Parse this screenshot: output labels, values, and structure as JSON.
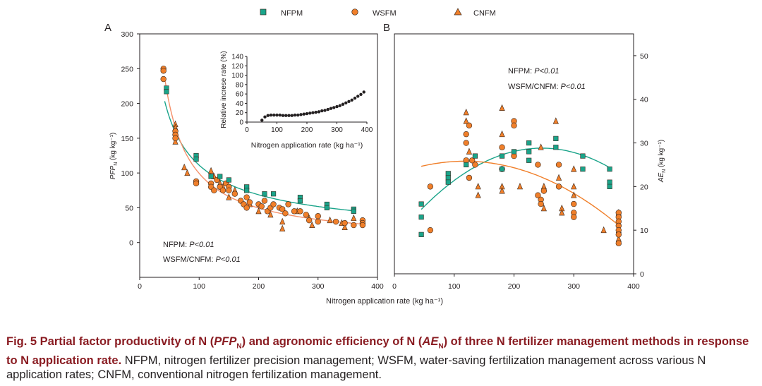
{
  "legend": {
    "nfpm": "NFPM",
    "wsfm": "WSFM",
    "cnfm": "CNFM"
  },
  "colors": {
    "nfpm": "#1aa48a",
    "wsfm": "#f07f2a",
    "cnfm": "#f07f2a",
    "marker_edge": "#3a2a20",
    "caption_bold": "#8a1c22"
  },
  "panel_a": {
    "label": "A",
    "stat_nfpm_prefix": "NFPM: ",
    "stat_nfpm_p": "P<0.01",
    "stat_wsfm_prefix": "WSFM/CNFM: ",
    "stat_wsfm_p": "P<0.01"
  },
  "panel_b": {
    "label": "B",
    "stat_nfpm_prefix": "NFPM: ",
    "stat_nfpm_p": "P<0.01",
    "stat_wsfm_prefix": "WSFM/CNFM: ",
    "stat_wsfm_p": "P<0.01"
  },
  "shared_xlabel": "Nitrogen application rate (kg ha⁻¹)",
  "chart_data": [
    {
      "id": "A",
      "type": "scatter",
      "title": "",
      "xlabel": "Nitrogen application rate (kg ha⁻¹)",
      "ylabel_main": "PFP",
      "ylabel_sub": "N",
      "ylabel_unit": " (kg kg⁻¹)",
      "xlim": [
        0,
        400
      ],
      "ylim": [
        -50,
        300
      ],
      "xticks": [
        0,
        100,
        200,
        300,
        400
      ],
      "yticks": [
        0,
        50,
        100,
        150,
        200,
        250,
        300
      ],
      "series": [
        {
          "name": "NFPM",
          "marker": "square",
          "points": [
            [
              45,
              222
            ],
            [
              45,
              217
            ],
            [
              95,
              125
            ],
            [
              95,
              120
            ],
            [
              120,
              95
            ],
            [
              135,
              95
            ],
            [
              150,
              90
            ],
            [
              180,
              80
            ],
            [
              180,
              75
            ],
            [
              210,
              70
            ],
            [
              225,
              70
            ],
            [
              270,
              65
            ],
            [
              270,
              60
            ],
            [
              315,
              55
            ],
            [
              315,
              50
            ],
            [
              360,
              48
            ],
            [
              360,
              45
            ]
          ]
        },
        {
          "name": "WSFM",
          "marker": "circle",
          "points": [
            [
              40,
              250
            ],
            [
              40,
              247
            ],
            [
              40,
              235
            ],
            [
              60,
              160
            ],
            [
              60,
              155
            ],
            [
              60,
              150
            ],
            [
              95,
              88
            ],
            [
              95,
              85
            ],
            [
              120,
              85
            ],
            [
              120,
              80
            ],
            [
              125,
              75
            ],
            [
              130,
              90
            ],
            [
              135,
              80
            ],
            [
              140,
              75
            ],
            [
              145,
              85
            ],
            [
              150,
              80
            ],
            [
              150,
              75
            ],
            [
              160,
              70
            ],
            [
              170,
              60
            ],
            [
              175,
              55
            ],
            [
              180,
              65
            ],
            [
              180,
              50
            ],
            [
              185,
              58
            ],
            [
              200,
              55
            ],
            [
              205,
              52
            ],
            [
              210,
              60
            ],
            [
              215,
              45
            ],
            [
              220,
              50
            ],
            [
              225,
              55
            ],
            [
              235,
              50
            ],
            [
              240,
              48
            ],
            [
              245,
              42
            ],
            [
              250,
              55
            ],
            [
              260,
              45
            ],
            [
              270,
              45
            ],
            [
              280,
              40
            ],
            [
              285,
              32
            ],
            [
              300,
              38
            ],
            [
              300,
              30
            ],
            [
              330,
              30
            ],
            [
              345,
              28
            ],
            [
              360,
              25
            ],
            [
              375,
              32
            ],
            [
              375,
              28
            ],
            [
              375,
              25
            ]
          ]
        },
        {
          "name": "CNFM",
          "marker": "triangle",
          "points": [
            [
              60,
              170
            ],
            [
              60,
              165
            ],
            [
              60,
              145
            ],
            [
              75,
              108
            ],
            [
              80,
              100
            ],
            [
              120,
              103
            ],
            [
              125,
              95
            ],
            [
              135,
              85
            ],
            [
              140,
              80
            ],
            [
              150,
              65
            ],
            [
              160,
              75
            ],
            [
              185,
              55
            ],
            [
              200,
              45
            ],
            [
              220,
              40
            ],
            [
              240,
              30
            ],
            [
              240,
              20
            ],
            [
              265,
              45
            ],
            [
              285,
              35
            ],
            [
              290,
              25
            ],
            [
              320,
              32
            ],
            [
              340,
              28
            ],
            [
              345,
              22
            ],
            [
              360,
              35
            ],
            [
              375,
              30
            ]
          ]
        }
      ],
      "curves": [
        {
          "name": "NFPM fit",
          "model": "a*x^b",
          "a": 2730,
          "b": -0.695
        },
        {
          "name": "WSFM/CNFM fit",
          "model": "a*x^b",
          "a": 9940,
          "b": -1.0
        }
      ],
      "inset": {
        "type": "scatter",
        "xlabel": "Nitrogen application rate (kg ha⁻¹)",
        "ylabel": "Relative increse rate (%)",
        "xlim": [
          0,
          400
        ],
        "ylim": [
          0,
          140
        ],
        "xticks": [
          0,
          100,
          200,
          300,
          400
        ],
        "yticks": [
          0,
          20,
          40,
          60,
          80,
          100,
          120,
          140
        ],
        "points": [
          [
            50,
            4
          ],
          [
            60,
            11
          ],
          [
            70,
            14
          ],
          [
            80,
            15
          ],
          [
            90,
            15
          ],
          [
            100,
            15
          ],
          [
            110,
            15
          ],
          [
            120,
            14
          ],
          [
            130,
            14
          ],
          [
            140,
            14
          ],
          [
            150,
            14
          ],
          [
            160,
            15
          ],
          [
            170,
            15
          ],
          [
            180,
            16
          ],
          [
            190,
            17
          ],
          [
            200,
            18
          ],
          [
            210,
            19
          ],
          [
            220,
            20
          ],
          [
            230,
            21
          ],
          [
            240,
            22
          ],
          [
            250,
            24
          ],
          [
            260,
            25
          ],
          [
            270,
            27
          ],
          [
            280,
            29
          ],
          [
            290,
            31
          ],
          [
            300,
            33
          ],
          [
            310,
            35
          ],
          [
            320,
            38
          ],
          [
            330,
            41
          ],
          [
            340,
            44
          ],
          [
            350,
            47
          ],
          [
            360,
            51
          ],
          [
            370,
            55
          ],
          [
            380,
            59
          ],
          [
            390,
            64
          ]
        ]
      }
    },
    {
      "id": "B",
      "type": "scatter",
      "title": "",
      "xlabel": "Nitrogen application rate (kg ha⁻¹)",
      "ylabel_main": "AE",
      "ylabel_sub": "N",
      "ylabel_unit": " (kg kg⁻¹)",
      "yaxis_side": "right",
      "xlim": [
        0,
        400
      ],
      "ylim": [
        0,
        55
      ],
      "xticks": [
        0,
        100,
        200,
        300,
        400
      ],
      "yticks": [
        0,
        10,
        20,
        30,
        40,
        50
      ],
      "series": [
        {
          "name": "NFPM",
          "marker": "square",
          "points": [
            [
              45,
              16
            ],
            [
              45,
              13
            ],
            [
              45,
              9
            ],
            [
              90,
              23
            ],
            [
              90,
              22
            ],
            [
              90,
              21
            ],
            [
              120,
              25
            ],
            [
              135,
              27
            ],
            [
              180,
              27
            ],
            [
              180,
              24
            ],
            [
              200,
              28
            ],
            [
              225,
              28
            ],
            [
              225,
              30
            ],
            [
              225,
              26
            ],
            [
              270,
              31
            ],
            [
              270,
              29
            ],
            [
              315,
              27
            ],
            [
              315,
              24
            ],
            [
              360,
              24
            ],
            [
              360,
              21
            ],
            [
              360,
              20
            ]
          ]
        },
        {
          "name": "WSFM",
          "marker": "circle",
          "points": [
            [
              60,
              20
            ],
            [
              60,
              10
            ],
            [
              120,
              26
            ],
            [
              120,
              30
            ],
            [
              120,
              32
            ],
            [
              125,
              34
            ],
            [
              125,
              22
            ],
            [
              130,
              26
            ],
            [
              135,
              25
            ],
            [
              180,
              29
            ],
            [
              180,
              24
            ],
            [
              200,
              35
            ],
            [
              200,
              34
            ],
            [
              200,
              27
            ],
            [
              240,
              25
            ],
            [
              240,
              18
            ],
            [
              245,
              17
            ],
            [
              245,
              16
            ],
            [
              250,
              19
            ],
            [
              275,
              25
            ],
            [
              275,
              20
            ],
            [
              300,
              16
            ],
            [
              300,
              14
            ],
            [
              300,
              13
            ],
            [
              375,
              14
            ],
            [
              375,
              13
            ],
            [
              375,
              12
            ],
            [
              375,
              11
            ],
            [
              375,
              10
            ],
            [
              375,
              9
            ],
            [
              375,
              7
            ]
          ]
        },
        {
          "name": "CNFM",
          "marker": "triangle",
          "points": [
            [
              120,
              37
            ],
            [
              120,
              35
            ],
            [
              125,
              28
            ],
            [
              140,
              20
            ],
            [
              140,
              18
            ],
            [
              180,
              38
            ],
            [
              180,
              32
            ],
            [
              180,
              20
            ],
            [
              180,
              19
            ],
            [
              210,
              20
            ],
            [
              245,
              29
            ],
            [
              250,
              20
            ],
            [
              250,
              15
            ],
            [
              270,
              35
            ],
            [
              275,
              22
            ],
            [
              280,
              15
            ],
            [
              280,
              14
            ],
            [
              300,
              24
            ],
            [
              300,
              20
            ],
            [
              300,
              18
            ],
            [
              350,
              10
            ],
            [
              375,
              14
            ],
            [
              375,
              10
            ],
            [
              375,
              8
            ]
          ]
        }
      ],
      "curves": [
        {
          "name": "NFPM fit",
          "model": "quadratic",
          "c0": 7.8,
          "c1": 0.1705,
          "c2": -0.000346
        },
        {
          "name": "WSFM/CNFM fit",
          "model": "quadratic",
          "c0": 22.73,
          "c1": 0.0523,
          "c2": -0.000222
        }
      ]
    }
  ],
  "caption": {
    "fig_label": "Fig. 5",
    "bold_part1": " Partial factor productivity of N (",
    "bold_pfp": "PFP",
    "bold_pfp_sub": "N",
    "bold_part2": ") and agronomic efficiency of N (",
    "bold_ae": "AE",
    "bold_ae_sub": "N",
    "bold_part3": ") of three N fertilizer management methods in response to N application rate.",
    "plain": " NFPM, nitrogen fertilizer precision management; WSFM, water-saving fertilization management across various N application rates; CNFM, conventional nitrogen fertilization management."
  }
}
